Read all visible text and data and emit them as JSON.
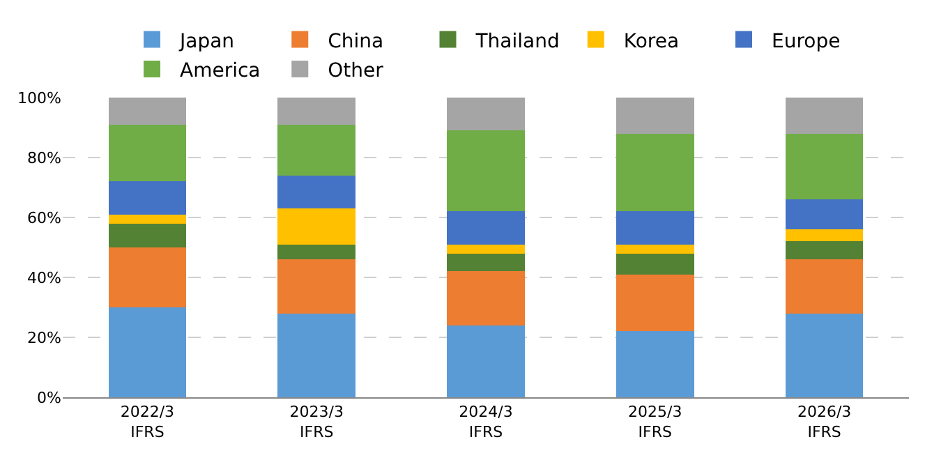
{
  "chart_data": {
    "type": "bar",
    "stacked": true,
    "categories": [
      "2022/3\nIFRS",
      "2023/3\nIFRS",
      "2024/3\nIFRS",
      "2025/3\nIFRS",
      "2026/3\nIFRS"
    ],
    "series": [
      {
        "name": "Japan",
        "color": "#5b9bd5",
        "values": [
          30,
          28,
          24,
          22,
          28
        ]
      },
      {
        "name": "China",
        "color": "#ed7d31",
        "values": [
          20,
          18,
          18,
          19,
          18
        ]
      },
      {
        "name": "Thailand",
        "color": "#548235",
        "values": [
          8,
          5,
          6,
          7,
          6
        ]
      },
      {
        "name": "Korea",
        "color": "#ffc000",
        "values": [
          3,
          12,
          3,
          3,
          4
        ]
      },
      {
        "name": "Europe",
        "color": "#4472c4",
        "values": [
          11,
          11,
          11,
          11,
          10
        ]
      },
      {
        "name": "America",
        "color": "#70ad47",
        "values": [
          19,
          17,
          27,
          26,
          22
        ]
      },
      {
        "name": "Other",
        "color": "#a5a5a5",
        "values": [
          9,
          9,
          11,
          12,
          12
        ]
      }
    ],
    "ylim": [
      0,
      100
    ],
    "yticks": [
      {
        "value": 0,
        "label": "0%"
      },
      {
        "value": 20,
        "label": "20%"
      },
      {
        "value": 40,
        "label": "40%"
      },
      {
        "value": 60,
        "label": "60%"
      },
      {
        "value": 80,
        "label": "80%"
      },
      {
        "value": 100,
        "label": "100%"
      }
    ],
    "grid": "y",
    "legend": "top"
  }
}
